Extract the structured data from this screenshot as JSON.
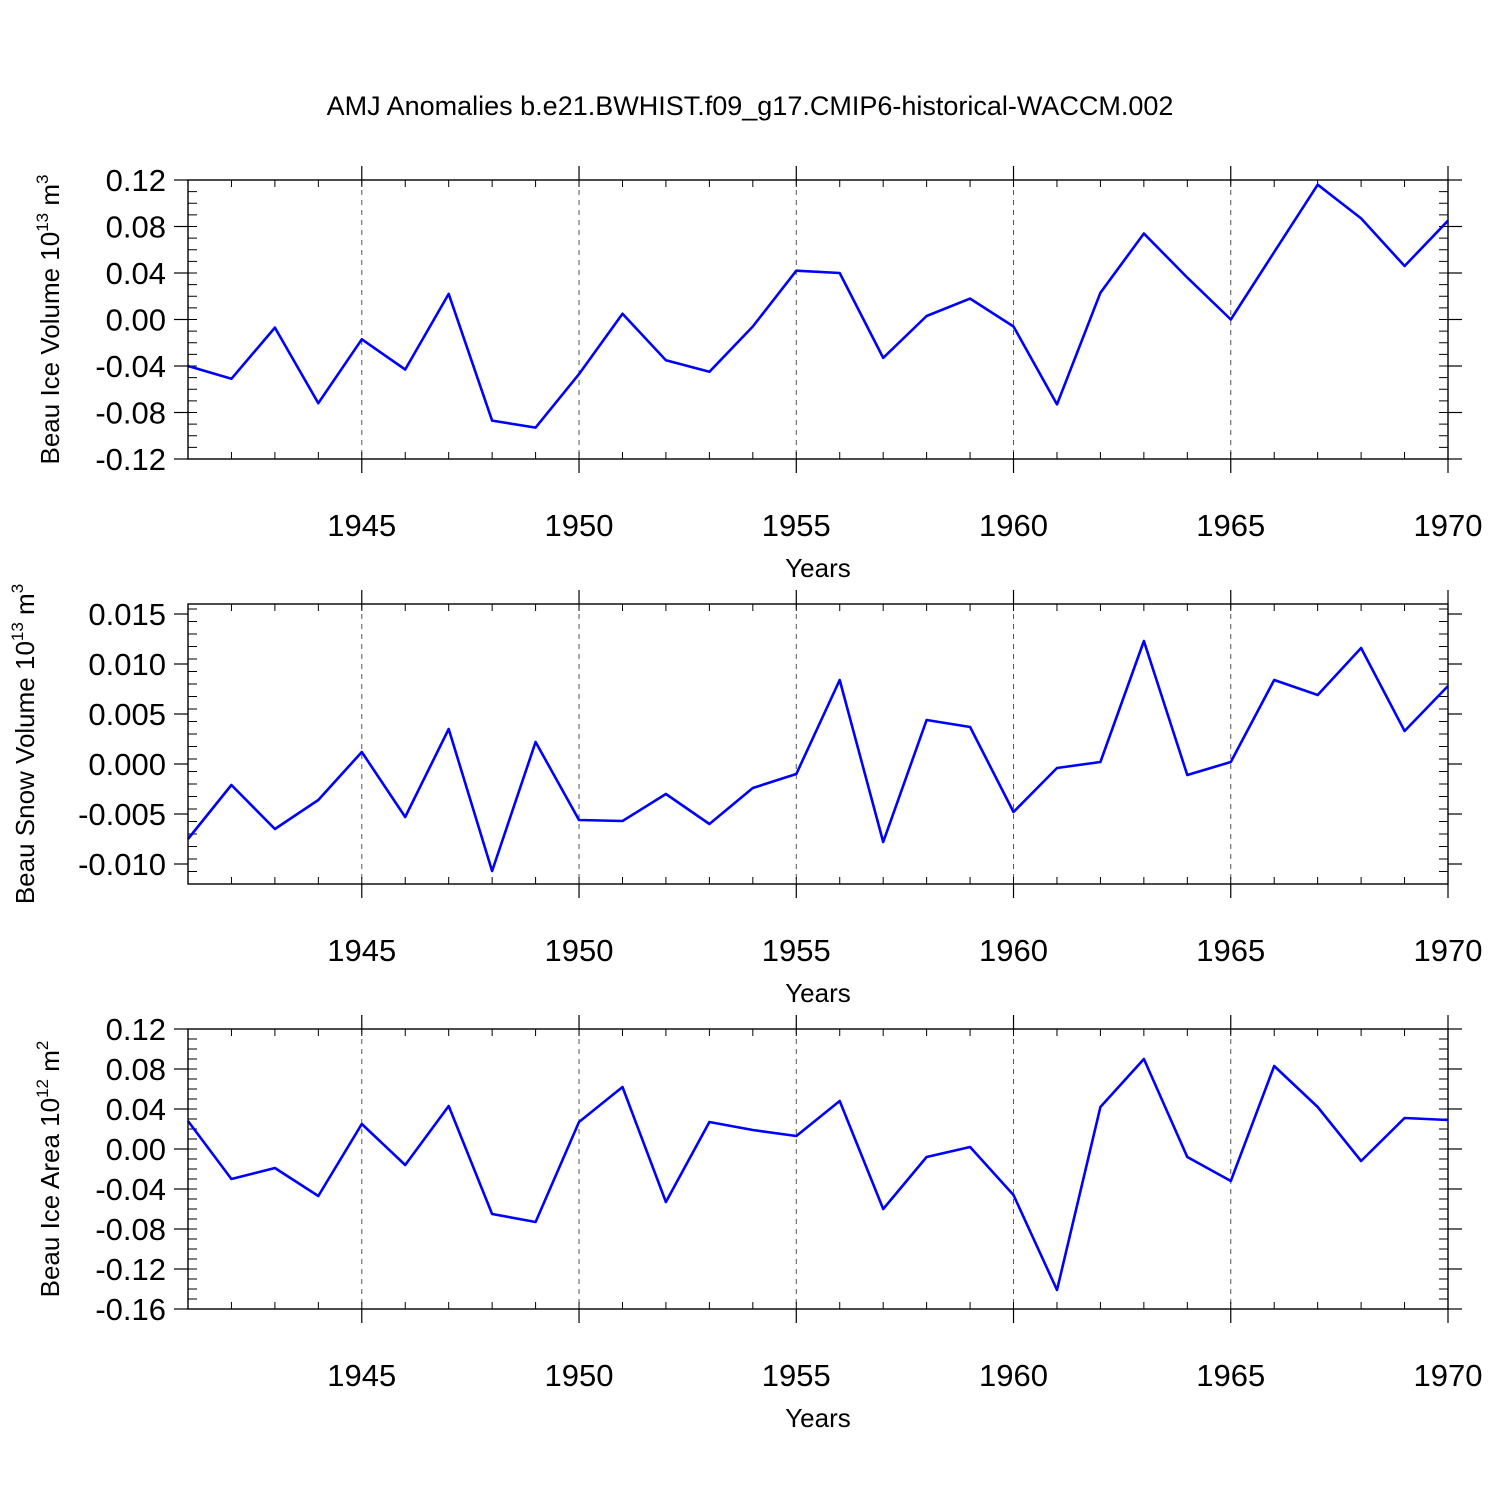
{
  "title": "AMJ Anomalies b.e21.BWHIST.f09_g17.CMIP6-historical-WACCM.002",
  "line_color": "#0000ff",
  "chart_data": [
    {
      "type": "line",
      "ylabel": "Beau Ice Volume 10",
      "ylabel_exp": "13",
      "ylabel_unit": " m",
      "ylabel_unit_exp": "3",
      "xlabel": "Years",
      "xlim": [
        1941,
        1970
      ],
      "ylim": [
        -0.12,
        0.12
      ],
      "yticks": [
        -0.12,
        -0.08,
        -0.04,
        0.0,
        0.04,
        0.08,
        0.12
      ],
      "ytick_labels": [
        "-0.12",
        "-0.08",
        "-0.04",
        "0.00",
        "0.04",
        "0.08",
        "0.12"
      ],
      "xticks": [
        1945,
        1950,
        1955,
        1960,
        1965,
        1970
      ],
      "xtick_labels": [
        "1945",
        "1950",
        "1955",
        "1960",
        "1965",
        "1970"
      ],
      "grid": "dashed vertical at major x ticks",
      "x": [
        1941,
        1942,
        1943,
        1944,
        1945,
        1946,
        1947,
        1948,
        1949,
        1950,
        1951,
        1952,
        1953,
        1954,
        1955,
        1956,
        1957,
        1958,
        1959,
        1960,
        1961,
        1962,
        1963,
        1964,
        1965,
        1966,
        1967,
        1968,
        1969,
        1970
      ],
      "values": [
        -0.04,
        -0.051,
        -0.007,
        -0.072,
        -0.017,
        -0.043,
        0.022,
        -0.087,
        -0.093,
        -0.047,
        0.005,
        -0.035,
        -0.045,
        -0.006,
        0.042,
        0.04,
        -0.033,
        0.003,
        0.018,
        -0.006,
        -0.073,
        0.023,
        0.074,
        0.036,
        0.0,
        0.058,
        0.116,
        0.087,
        0.046,
        0.085
      ]
    },
    {
      "type": "line",
      "ylabel": "Beau Snow Volume 10",
      "ylabel_exp": "13",
      "ylabel_unit": " m",
      "ylabel_unit_exp": "3",
      "xlabel": "Years",
      "xlim": [
        1941,
        1970
      ],
      "ylim": [
        -0.012,
        0.016
      ],
      "yticks": [
        -0.01,
        -0.005,
        0.0,
        0.005,
        0.01,
        0.015
      ],
      "ytick_labels": [
        "-0.010",
        "-0.005",
        "0.000",
        "0.005",
        "0.010",
        "0.015"
      ],
      "xticks": [
        1945,
        1950,
        1955,
        1960,
        1965,
        1970
      ],
      "xtick_labels": [
        "1945",
        "1950",
        "1955",
        "1960",
        "1965",
        "1970"
      ],
      "grid": "dashed vertical at major x ticks",
      "x": [
        1941,
        1942,
        1943,
        1944,
        1945,
        1946,
        1947,
        1948,
        1949,
        1950,
        1951,
        1952,
        1953,
        1954,
        1955,
        1956,
        1957,
        1958,
        1959,
        1960,
        1961,
        1962,
        1963,
        1964,
        1965,
        1966,
        1967,
        1968,
        1969,
        1970
      ],
      "values": [
        -0.0075,
        -0.0021,
        -0.0065,
        -0.0036,
        0.0012,
        -0.0053,
        0.0035,
        -0.0107,
        0.0022,
        -0.0056,
        -0.0057,
        -0.003,
        -0.006,
        -0.0024,
        -0.001,
        0.0084,
        -0.0078,
        0.0044,
        0.0037,
        -0.0048,
        -0.0004,
        0.0002,
        0.0123,
        -0.0011,
        0.0002,
        0.0084,
        0.0069,
        0.0116,
        0.0033,
        0.0078
      ]
    },
    {
      "type": "line",
      "ylabel": "Beau Ice Area 10",
      "ylabel_exp": "12",
      "ylabel_unit": " m",
      "ylabel_unit_exp": "2",
      "xlabel": "Years",
      "xlim": [
        1941,
        1970
      ],
      "ylim": [
        -0.16,
        0.12
      ],
      "yticks": [
        -0.16,
        -0.12,
        -0.08,
        -0.04,
        0.0,
        0.04,
        0.08,
        0.12
      ],
      "ytick_labels": [
        "-0.16",
        "-0.12",
        "-0.08",
        "-0.04",
        "0.00",
        "0.04",
        "0.08",
        "0.12"
      ],
      "xticks": [
        1945,
        1950,
        1955,
        1960,
        1965,
        1970
      ],
      "xtick_labels": [
        "1945",
        "1950",
        "1955",
        "1960",
        "1965",
        "1970"
      ],
      "grid": "dashed vertical at major x ticks",
      "x": [
        1941,
        1942,
        1943,
        1944,
        1945,
        1946,
        1947,
        1948,
        1949,
        1950,
        1951,
        1952,
        1953,
        1954,
        1955,
        1956,
        1957,
        1958,
        1959,
        1960,
        1961,
        1962,
        1963,
        1964,
        1965,
        1966,
        1967,
        1968,
        1969,
        1970
      ],
      "values": [
        0.028,
        -0.03,
        -0.019,
        -0.047,
        0.025,
        -0.016,
        0.043,
        -0.065,
        -0.073,
        0.027,
        0.062,
        -0.053,
        0.027,
        0.019,
        0.013,
        0.048,
        -0.06,
        -0.008,
        0.002,
        -0.046,
        -0.141,
        0.042,
        0.09,
        -0.008,
        -0.032,
        0.083,
        0.042,
        -0.012,
        0.031,
        0.029
      ]
    }
  ]
}
